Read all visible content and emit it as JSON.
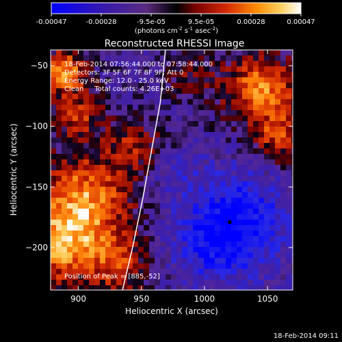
{
  "colorbar": {
    "ticks": [
      "-0.00047",
      "-0.00028",
      "-9.5e-05",
      "9.5e-05",
      "0.00028",
      "0.00047"
    ],
    "unit_label": "(photons cm",
    "unit_sup1": "-2",
    "unit_mid": " s",
    "unit_sup2": "-1",
    "unit_tail": " asec",
    "unit_sup3": "-2",
    "unit_close": ")",
    "range": [
      -0.00047,
      0.00047
    ]
  },
  "chart_data": {
    "type": "heatmap",
    "title": "Reconstructed RHESSI Image",
    "xlabel": "Heliocentric X (arcsec)",
    "ylabel": "Heliocentric Y (arcsec)",
    "xlim": [
      878,
      1070
    ],
    "ylim": [
      -235,
      -37
    ],
    "xticks": [
      900,
      950,
      1000,
      1050
    ],
    "yticks": [
      -50,
      -100,
      -150,
      -200
    ],
    "xtick_labels": [
      "900",
      "950",
      "1000",
      "1050"
    ],
    "ytick_labels": [
      "−50",
      "−100",
      "−150",
      "−200"
    ],
    "peak": {
      "x": 885,
      "y": -52
    },
    "limb_curve": [
      [
        969,
        -37
      ],
      [
        965,
        -80
      ],
      [
        958,
        -120
      ],
      [
        951,
        -160
      ],
      [
        943,
        -200
      ],
      [
        935,
        -235
      ]
    ],
    "min_marker": {
      "x": 1020,
      "y": -179
    },
    "info_lines": [
      "18-Feb-2014 07:56:44.000 to 07:58:44.000",
      "Detectors: 3F 5F 6F 7F 8F 9F, Att 0",
      "Energy Range: 12.0 - 25.0 keV",
      "Clean     Total counts: 4.26E+03"
    ],
    "peak_label": "Position of Peak = [885,-52]"
  },
  "timestamp": "18-Feb-2014 09:11",
  "colors": {
    "background": "#000000",
    "text": "#ffffff",
    "cmap": [
      "#0000ff",
      "#4b4bff",
      "#3a1aa8",
      "#5a2a90",
      "#000000",
      "#7a0000",
      "#d22a00",
      "#ff7a00",
      "#ffbf3a",
      "#ffffff"
    ]
  }
}
